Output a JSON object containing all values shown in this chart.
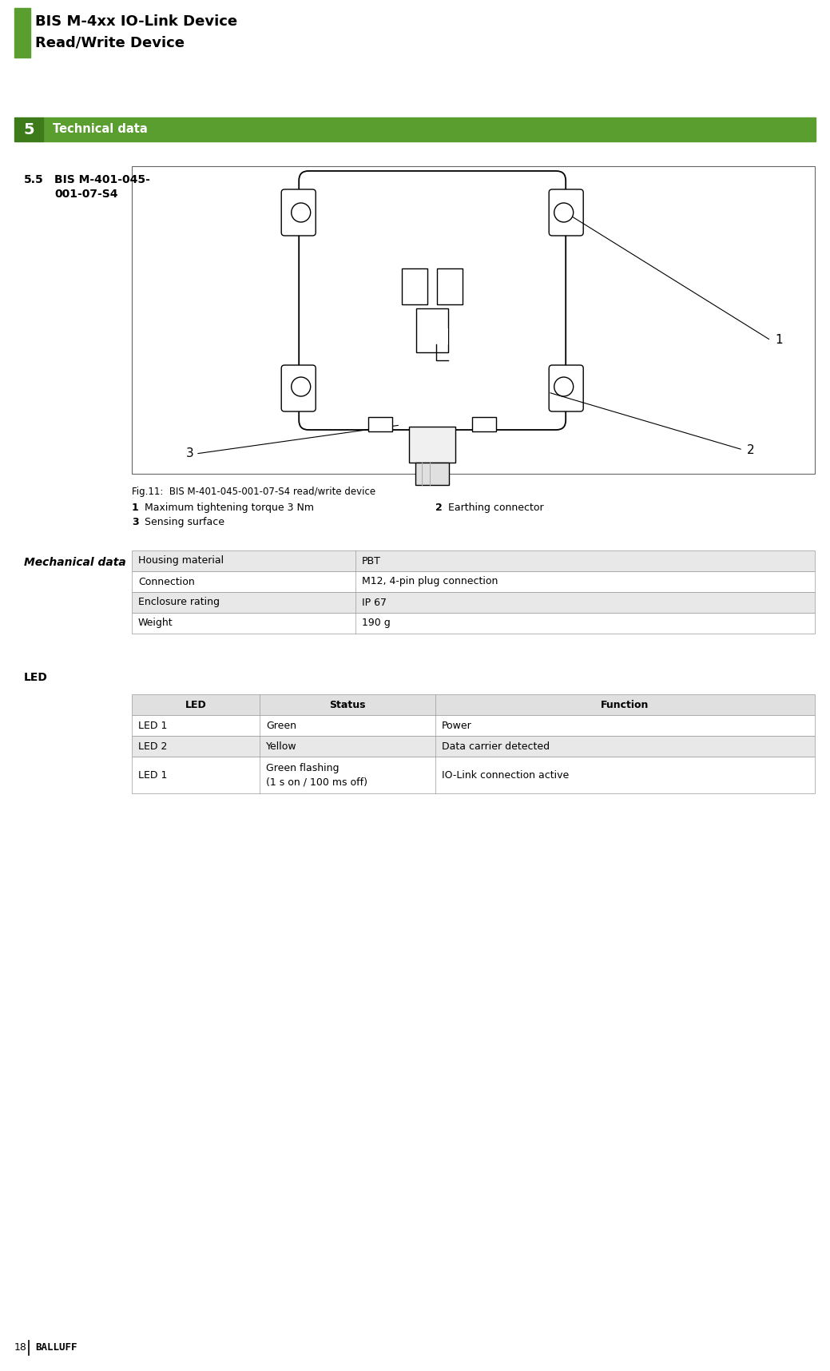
{
  "page_title_line1": "BIS M-4xx IO-Link Device",
  "page_title_line2": "Read/Write Device",
  "section_number": "5",
  "section_title": "Technical data",
  "section_color": "#5a9e2f",
  "section_number_bg": "#3d7a1a",
  "subsection": "5.5",
  "subsection_title_line1": "BIS M-401-045-",
  "subsection_title_line2": "001-07-S4",
  "fig_caption": "Fig.11:  BIS M-401-045-001-07-S4 read/write device",
  "callout_1": "1",
  "callout_2": "2",
  "callout_3": "3",
  "label_1_num": "1",
  "label_1_text": "Maximum tightening torque 3 Nm",
  "label_2_num": "2",
  "label_2_text": "Earthing connector",
  "label_3_num": "3",
  "label_3_text": "Sensing surface",
  "mechanical_data_title": "Mechanical data",
  "mech_rows": [
    [
      "Housing material",
      "PBT"
    ],
    [
      "Connection",
      "M12, 4-pin plug connection"
    ],
    [
      "Enclosure rating",
      "IP 67"
    ],
    [
      "Weight",
      "190 g"
    ]
  ],
  "mech_row_colors": [
    "#e8e8e8",
    "#ffffff",
    "#e8e8e8",
    "#ffffff"
  ],
  "led_section_title": "LED",
  "led_headers": [
    "LED",
    "Status",
    "Function"
  ],
  "led_rows": [
    [
      "LED 1",
      "Green",
      "Power"
    ],
    [
      "LED 2",
      "Yellow",
      "Data carrier detected"
    ],
    [
      "LED 1",
      "Green flashing\n(1 s on / 100 ms off)",
      "IO-Link connection active"
    ]
  ],
  "led_row_colors": [
    "#ffffff",
    "#e8e8e8",
    "#ffffff"
  ],
  "page_number": "18",
  "balluff_text": "BALLUFF",
  "bg_color": "#ffffff",
  "text_color": "#000000",
  "table_border_color": "#999999"
}
